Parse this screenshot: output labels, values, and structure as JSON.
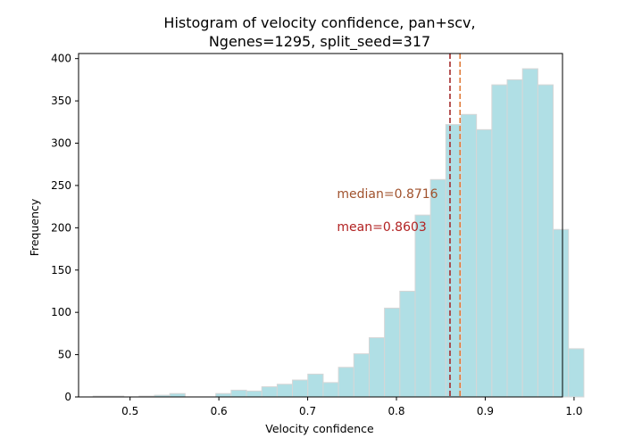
{
  "chart_data": {
    "type": "bar",
    "title_lines": [
      "Histogram of velocity confidence, pan+scv,",
      "Ngenes=1295, split_seed=317"
    ],
    "xlabel": "Velocity confidence",
    "ylabel": "Frequency",
    "xlim": [
      0.442,
      0.987
    ],
    "ylim": [
      0,
      406
    ],
    "xticks": [
      0.5,
      0.6,
      0.7,
      0.8,
      0.9,
      1.0
    ],
    "xtick_labels": [
      "0.5",
      "0.6",
      "0.7",
      "0.8",
      "0.9",
      "1.0"
    ],
    "yticks": [
      0,
      50,
      100,
      150,
      200,
      250,
      300,
      350,
      400
    ],
    "ytick_labels": [
      "0",
      "50",
      "100",
      "150",
      "200",
      "250",
      "300",
      "350",
      "400"
    ],
    "bins": {
      "start": 0.4584,
      "width": 0.01727,
      "values": [
        1,
        1,
        0,
        1,
        2,
        4,
        0,
        0,
        4,
        8,
        7,
        12,
        15,
        20,
        27,
        17,
        35,
        51,
        70,
        105,
        125,
        215,
        257,
        322,
        334,
        316,
        369,
        375,
        388,
        369,
        198,
        57
      ]
    },
    "bar_color": "#b0dfe5",
    "bar_edge_color": "#d6d6d6",
    "grid": false,
    "median": {
      "value": 0.8716,
      "label": "median=0.8716",
      "color": "#a0522d",
      "line_color": "#e07b39"
    },
    "mean": {
      "value": 0.8603,
      "label": "mean=0.8603",
      "color": "#b22222",
      "line_color": "#a52a2a"
    },
    "annotation_anchor": {
      "x": 0.733,
      "median_y": 235,
      "mean_y": 196
    }
  }
}
